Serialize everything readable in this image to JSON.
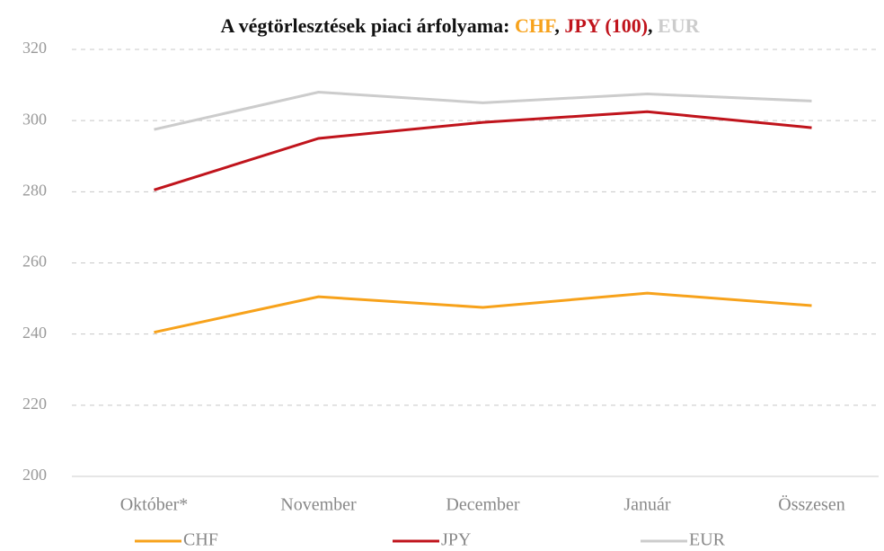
{
  "chart_data": {
    "type": "line",
    "title": [
      "A végtörlesztések piaci árfolyama: ",
      "CHF",
      ", ",
      "JPY (100)",
      ", ",
      "EUR"
    ],
    "title_colors": [
      "#111111",
      "#f7a21b",
      "#111111",
      "#c0141c",
      "#111111",
      "#cccccc"
    ],
    "categories": [
      "Október*",
      "November",
      "December",
      "Január",
      "Összesen"
    ],
    "series": [
      {
        "name": "CHF",
        "color": "#f7a21b",
        "values": [
          240.5,
          250.5,
          247.5,
          251.5,
          248
        ]
      },
      {
        "name": "JPY",
        "color": "#c0141c",
        "values": [
          280.5,
          295,
          299.5,
          302.5,
          298
        ]
      },
      {
        "name": "EUR",
        "color": "#cccccc",
        "values": [
          297.5,
          308,
          305,
          307.5,
          305.5
        ]
      }
    ],
    "ylim": [
      200,
      320
    ],
    "yticks": [
      200,
      220,
      240,
      260,
      280,
      300,
      320
    ],
    "grid": true,
    "legend": "bottom"
  }
}
